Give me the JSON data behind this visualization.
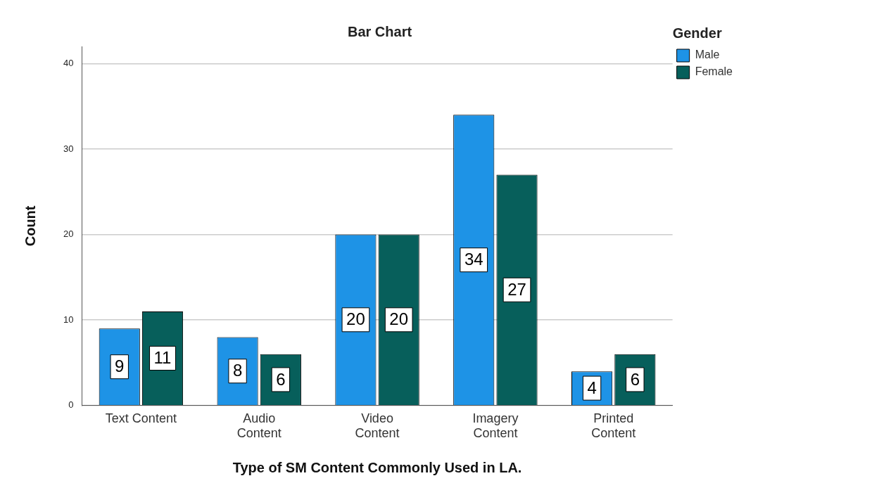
{
  "chart_data": {
    "type": "bar",
    "title": "Bar Chart",
    "xlabel": "Type of SM Content Commonly Used in LA.",
    "ylabel": "Count",
    "legend_title": "Gender",
    "categories": [
      "Text Content",
      "Audio Content",
      "Video Content",
      "Imagery Content",
      "Printed Content"
    ],
    "series": [
      {
        "name": "Male",
        "color": "#1e93e6",
        "values": [
          9,
          8,
          20,
          34,
          4
        ]
      },
      {
        "name": "Female",
        "color": "#075f5b",
        "values": [
          11,
          6,
          20,
          27,
          6
        ]
      }
    ],
    "ylim": [
      0,
      42
    ],
    "yticks": [
      0,
      10,
      20,
      30,
      40
    ],
    "grid": "y",
    "legend": "top right",
    "data_labels": true
  }
}
